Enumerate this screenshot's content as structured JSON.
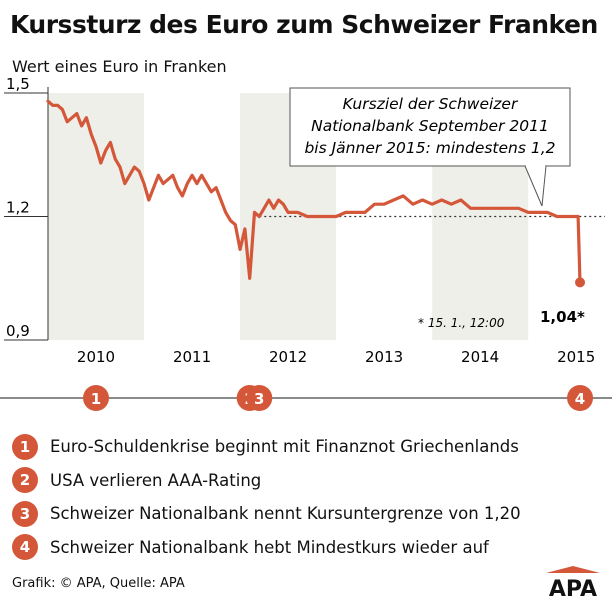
{
  "title": "Kurssturz des Euro zum Schweizer Franken",
  "subtitle": "Wert eines Euro in Franken",
  "annotation": {
    "lines": [
      "Kursziel der Schweizer",
      "Nationalbank September 2011",
      "bis Jänner 2015: mindestens 1,2"
    ]
  },
  "footnote": "* 15. 1., 12:00",
  "final_label": "1,04*",
  "event_badges": [
    {
      "num": "1",
      "year": 2010.0
    },
    {
      "num": "2",
      "year": 2011.6
    },
    {
      "num": "3",
      "year": 2011.7
    },
    {
      "num": "4",
      "year": 2015.04
    }
  ],
  "legend": [
    {
      "num": "1",
      "text": "Euro-Schuldenkrise beginnt mit Finanznot Griechenlands"
    },
    {
      "num": "2",
      "text": "USA verlieren AAA-Rating"
    },
    {
      "num": "3",
      "text": "Schweizer Nationalbank nennt Kursuntergrenze von 1,20"
    },
    {
      "num": "4",
      "text": "Schweizer Nationalbank hebt Mindestkurs wieder auf"
    }
  ],
  "footer": "Grafik: © APA, Quelle: APA",
  "logo_text": "APA",
  "colors": {
    "line": "#d4573a",
    "badge": "#d4573a",
    "band": "#efefea",
    "reference": "#333333"
  },
  "chart_data": {
    "type": "line",
    "title": "Kurssturz des Euro zum Schweizer Franken",
    "ylabel": "Wert eines Euro in Franken",
    "xlabel": "",
    "ylim": [
      0.9,
      1.5
    ],
    "xlim": [
      2009.5,
      2015.3
    ],
    "yticks": [
      {
        "value": 0.9,
        "label": "0,9"
      },
      {
        "value": 1.2,
        "label": "1,2"
      },
      {
        "value": 1.5,
        "label": "1,5"
      }
    ],
    "xticks": [
      2010,
      2011,
      2012,
      2013,
      2014,
      2015
    ],
    "grid": false,
    "alternating_year_bands": true,
    "reference_line": {
      "value": 1.2,
      "style": "dotted",
      "from": 2011.7,
      "to": 2015.3
    },
    "series": [
      {
        "x": [
          2009.5,
          2009.55,
          2009.6,
          2009.65,
          2009.7,
          2009.75,
          2009.8,
          2009.85,
          2009.9,
          2009.95,
          2010.0,
          2010.05,
          2010.1,
          2010.15,
          2010.2,
          2010.25,
          2010.3,
          2010.35,
          2010.4,
          2010.45,
          2010.5,
          2010.55,
          2010.6,
          2010.65,
          2010.7,
          2010.75,
          2010.8,
          2010.85,
          2010.9,
          2010.95,
          2011.0,
          2011.05,
          2011.1,
          2011.15,
          2011.2,
          2011.25,
          2011.3,
          2011.35,
          2011.4,
          2011.45,
          2011.5,
          2011.55,
          2011.6,
          2011.65,
          2011.7,
          2011.75,
          2011.8,
          2011.85,
          2011.9,
          2011.95,
          2012.0,
          2012.1,
          2012.2,
          2012.3,
          2012.4,
          2012.5,
          2012.6,
          2012.7,
          2012.8,
          2012.9,
          2013.0,
          2013.1,
          2013.2,
          2013.3,
          2013.4,
          2013.5,
          2013.6,
          2013.7,
          2013.8,
          2013.9,
          2014.0,
          2014.1,
          2014.2,
          2014.3,
          2014.4,
          2014.5,
          2014.6,
          2014.7,
          2014.8,
          2014.9,
          2015.0,
          2015.02,
          2015.04
        ],
        "y": [
          1.48,
          1.47,
          1.47,
          1.46,
          1.43,
          1.44,
          1.45,
          1.42,
          1.44,
          1.4,
          1.37,
          1.33,
          1.36,
          1.38,
          1.34,
          1.32,
          1.28,
          1.3,
          1.32,
          1.31,
          1.28,
          1.24,
          1.27,
          1.3,
          1.28,
          1.29,
          1.3,
          1.27,
          1.25,
          1.28,
          1.3,
          1.28,
          1.3,
          1.28,
          1.26,
          1.27,
          1.24,
          1.21,
          1.19,
          1.18,
          1.12,
          1.17,
          1.05,
          1.21,
          1.2,
          1.22,
          1.24,
          1.22,
          1.24,
          1.23,
          1.21,
          1.21,
          1.2,
          1.2,
          1.2,
          1.2,
          1.21,
          1.21,
          1.21,
          1.23,
          1.23,
          1.24,
          1.25,
          1.23,
          1.24,
          1.23,
          1.24,
          1.23,
          1.24,
          1.22,
          1.22,
          1.22,
          1.22,
          1.22,
          1.22,
          1.21,
          1.21,
          1.21,
          1.2,
          1.2,
          1.2,
          1.2,
          1.04
        ]
      }
    ]
  }
}
